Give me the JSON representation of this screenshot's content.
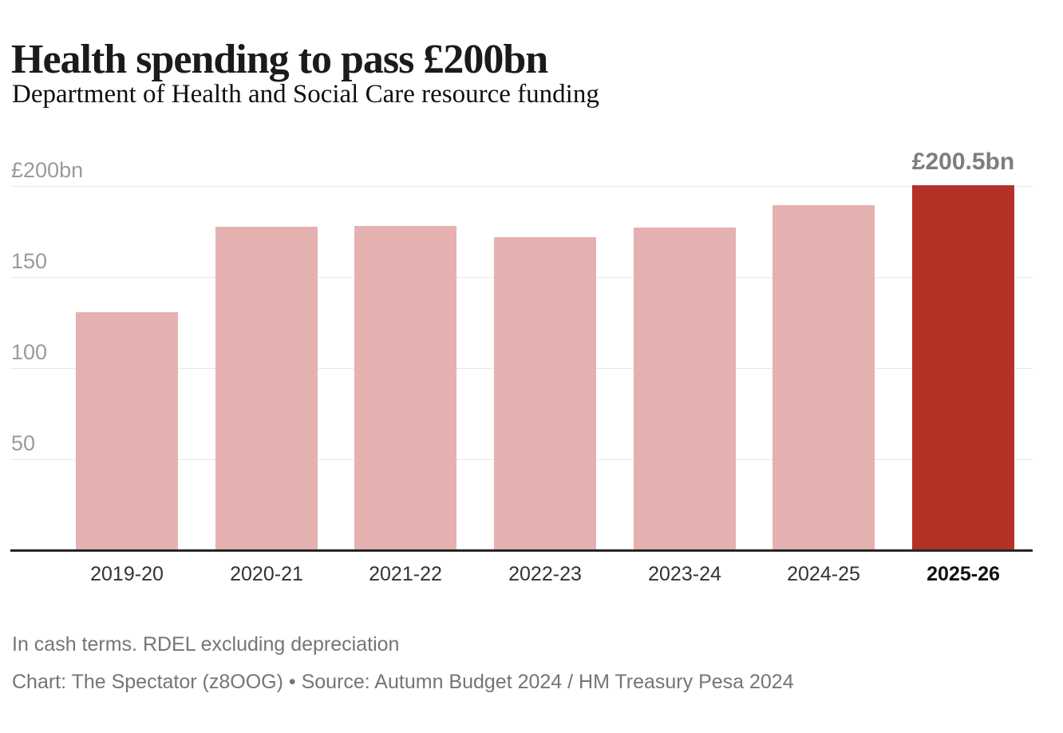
{
  "header": {
    "title": "Health spending to pass £200bn",
    "subtitle": "Department of Health and Social Care resource funding"
  },
  "chart_data": {
    "type": "bar",
    "categories": [
      "2019-20",
      "2020-21",
      "2021-22",
      "2022-23",
      "2023-24",
      "2024-25",
      "2025-26"
    ],
    "values": [
      130.5,
      177.5,
      178,
      172,
      177,
      189.5,
      200.5
    ],
    "title": "Health spending to pass £200bn",
    "subtitle": "Department of Health and Social Care resource funding",
    "xlabel": "",
    "ylabel": "£bn",
    "ylim": [
      0,
      210
    ],
    "grid": true,
    "yticks": [
      {
        "value": 200,
        "label": "£200bn"
      },
      {
        "value": 150,
        "label": "150"
      },
      {
        "value": 100,
        "label": "100"
      },
      {
        "value": 50,
        "label": "50"
      }
    ],
    "highlight_index": 6,
    "highlight_label": "£200.5bn",
    "colors": {
      "bar": "#e4b1b0",
      "highlight_bar": "#b43128",
      "grid": "#e8e8e8",
      "axis": "#262626",
      "ytick_label": "#9b9b9b",
      "xtick_label": "#333333",
      "xtick_highlight_label": "#111111",
      "value_label": "#7d7d7d"
    }
  },
  "footer": {
    "note": "In cash terms. RDEL excluding depreciation",
    "credit": "Chart: The Spectator (z8OOG) • Source: Autumn Budget 2024 / HM Treasury Pesa 2024"
  }
}
